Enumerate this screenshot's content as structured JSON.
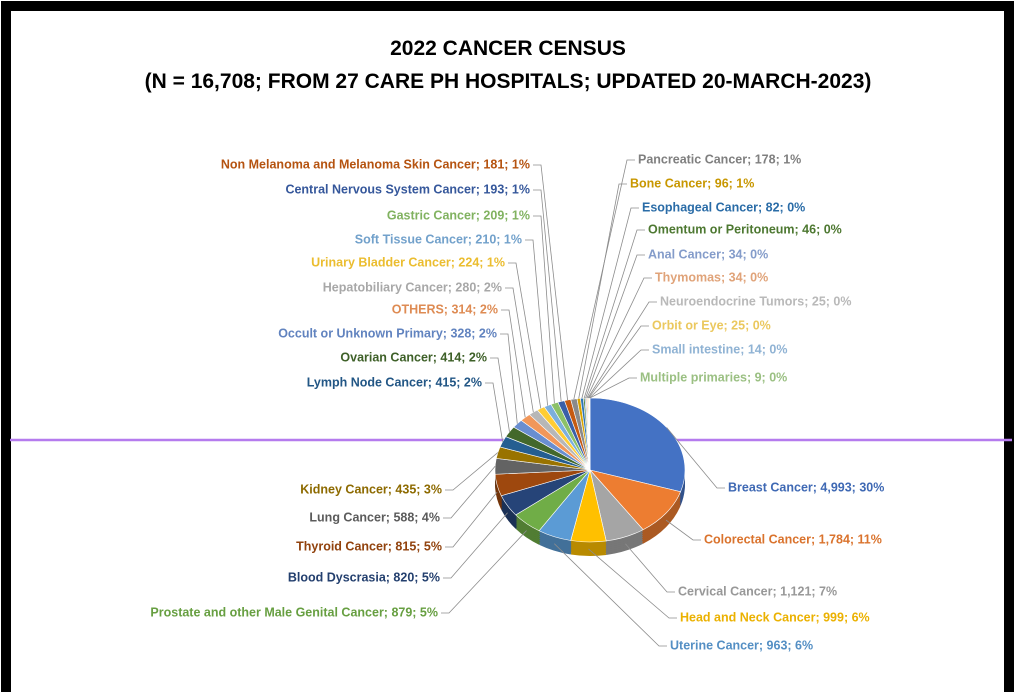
{
  "chart_data": {
    "type": "pie",
    "title": "2022 CANCER CENSUS",
    "subtitle": "(N = 16,708; FROM 27 CARE PH HOSPITALS; UPDATED 20-MARCH-2023)",
    "values": [
      4993,
      1784,
      1121,
      999,
      963,
      879,
      820,
      815,
      588,
      435,
      415,
      414,
      328,
      314,
      280,
      224,
      210,
      209,
      193,
      181,
      178,
      96,
      82,
      46,
      34,
      34,
      25,
      25,
      14,
      9
    ],
    "value_labels": [
      "Breast Cancer; 4,993; 30%",
      "Colorectal Cancer; 1,784; 11%",
      "Cervical Cancer; 1,121; 7%",
      "Head and Neck Cancer; 999; 6%",
      "Uterine Cancer; 963; 6%",
      "Prostate and other Male Genital Cancer; 879; 5%",
      "Blood Dyscrasia; 820; 5%",
      "Thyroid Cancer; 815; 5%",
      "Lung Cancer; 588; 4%",
      "Kidney Cancer; 435; 3%",
      "Lymph Node Cancer; 415; 2%",
      "Ovarian Cancer; 414; 2%",
      "Occult or Unknown Primary; 328; 2%",
      "OTHERS; 314; 2%",
      "Hepatobiliary Cancer; 280; 2%",
      "Urinary Bladder Cancer; 224; 1%",
      "Soft Tissue Cancer; 210; 1%",
      "Gastric Cancer; 209; 1%",
      "Central Nervous System Cancer; 193; 1%",
      "Non Melanoma and Melanoma Skin Cancer; 181; 1%",
      "Pancreatic Cancer; 178; 1%",
      "Bone Cancer; 96; 1%",
      "Esophageal Cancer; 82; 0%",
      "Omentum or Peritoneum; 46; 0%",
      "Anal Cancer; 34; 0%",
      "Thymomas; 34; 0%",
      "Neuroendocrine Tumors; 25; 0%",
      "Orbit or Eye; 25; 0%",
      "Small intestine; 14; 0%",
      "Multiple primaries; 9; 0%"
    ],
    "colors": [
      "#4472c4",
      "#ed7d31",
      "#a5a5a5",
      "#ffc000",
      "#5b9bd5",
      "#70ad47",
      "#264478",
      "#9e480e",
      "#636363",
      "#997300",
      "#255e91",
      "#43682b",
      "#698ed0",
      "#f1975a",
      "#b7b7b7",
      "#ffcd33",
      "#7cafdd",
      "#8cc168",
      "#3a5fa8",
      "#c55a11",
      "#8a8a8a",
      "#d9a400",
      "#2e75b6",
      "#548235",
      "#8faadc",
      "#f4b183",
      "#c9c9c9",
      "#ffd966",
      "#9dc3e6",
      "#a9d18e"
    ]
  }
}
